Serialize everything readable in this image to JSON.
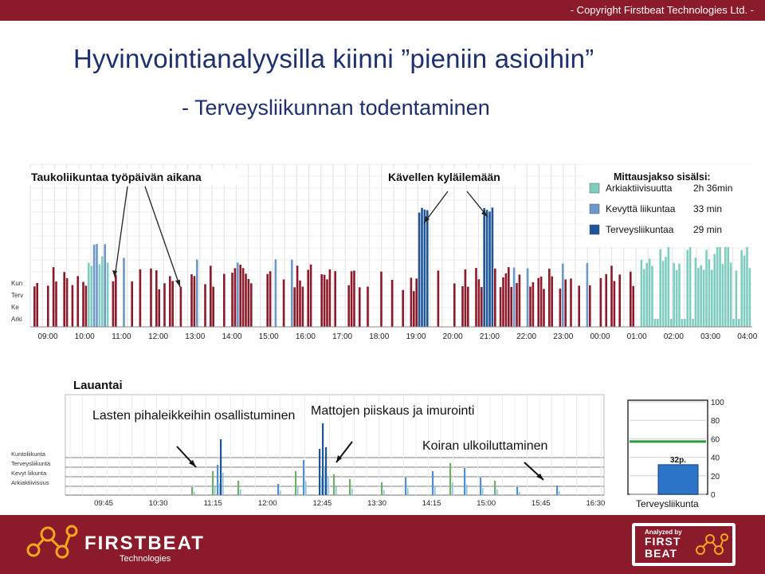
{
  "header": {
    "copyright": "- Copyright Firstbeat Technologies Ltd. -"
  },
  "title": "Hyvinvointianalyysilla kiinni ”pieniin asioihin”",
  "subtitle": "- Terveysliikunnan todentaminen",
  "footer": {
    "logo_text": "FIRSTBEAT",
    "logo_sub": "Technologies",
    "badge_small": "Analyzed by",
    "badge_line1": "FIRST",
    "badge_line2": "BEAT"
  },
  "chart_data": [
    {
      "type": "bar",
      "y_labels": [
        "Kun",
        "Terv",
        "Ke",
        "Arki"
      ],
      "x_ticks": [
        "09:00",
        "10:00",
        "11:00",
        "12:00",
        "13:00",
        "14:00",
        "15:00",
        "16:00",
        "17:00",
        "18:00",
        "19:00",
        "20:00",
        "21:00",
        "22:00",
        "23:00",
        "00:00",
        "01:00",
        "02:00",
        "03:00",
        "04:00"
      ],
      "annotations": [
        "Taukoliikuntaa työpäivän aikana",
        "Kävellen kyläilemään"
      ],
      "legend": {
        "title": "Mittausjakso sisälsi:",
        "items": [
          {
            "label": "Arkiaktiivisuutta",
            "value": "2h 36min",
            "color": "#7ecdc0"
          },
          {
            "label": "Kevyttä liikuntaa",
            "value": "33 min",
            "color": "#6e98c8"
          },
          {
            "label": "Terveysliikuntaa",
            "value": "29 min",
            "color": "#1f5597"
          }
        ]
      },
      "colors": {
        "activity": "#8b1a2b",
        "arki": "#7ecdc0",
        "kevyt": "#6e98c8",
        "terveys": "#1f5597"
      }
    },
    {
      "type": "bar",
      "title": "Lauantai",
      "y_labels": [
        "Kuntoliikunta",
        "Terveysliikunta",
        "Kevyt liikunta",
        "Arkiaktiivisuus"
      ],
      "x_ticks": [
        "09:45",
        "10:30",
        "11:15",
        "12:00",
        "12:45",
        "13:30",
        "14:15",
        "15:00",
        "15:45",
        "16:30"
      ],
      "annotations": [
        "Lasten pihaleikkeihin osallistuminen",
        "Mattojen piiskaus ja imurointi",
        "Koiran ulkoiluttaminen"
      ]
    },
    {
      "type": "bar",
      "categories": [
        "Terveysliikunta"
      ],
      "values": [
        32
      ],
      "value_label": "32p.",
      "ylim": [
        0,
        100
      ],
      "y_ticks": [
        "100",
        "80",
        "60",
        "40",
        "20",
        "0"
      ],
      "threshold": 57
    }
  ]
}
